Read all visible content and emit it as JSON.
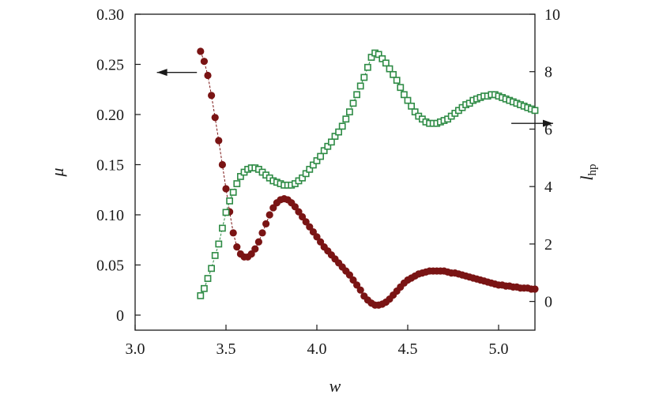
{
  "chart_data": {
    "type": "scatter",
    "xlabel": "w",
    "ylabel_left": "μ",
    "ylabel_right_main": "l",
    "ylabel_right_sub": "hp",
    "xlim": [
      3.0,
      5.2
    ],
    "ylim_left": [
      -0.015,
      0.3
    ],
    "ylim_right": [
      -1,
      10
    ],
    "x_ticks": [
      "3.0",
      "3.5",
      "4.0",
      "4.5",
      "5.0"
    ],
    "x_tick_values": [
      3.0,
      3.5,
      4.0,
      4.5,
      5.0
    ],
    "yleft_ticks": [
      "0",
      "0.05",
      "0.10",
      "0.15",
      "0.20",
      "0.25",
      "0.30"
    ],
    "yleft_tick_values": [
      0,
      0.05,
      0.1,
      0.15,
      0.2,
      0.25,
      0.3
    ],
    "yright_ticks": [
      "0",
      "2",
      "4",
      "6",
      "8",
      "10"
    ],
    "yright_tick_values": [
      0,
      2,
      4,
      6,
      8,
      10
    ],
    "grid": false,
    "series": [
      {
        "marker": "filled-circle",
        "axis": "left",
        "color": "#7a1414",
        "points": [
          [
            3.36,
            0.263
          ],
          [
            3.38,
            0.253
          ],
          [
            3.4,
            0.239
          ],
          [
            3.42,
            0.219
          ],
          [
            3.44,
            0.197
          ],
          [
            3.46,
            0.174
          ],
          [
            3.48,
            0.15
          ],
          [
            3.5,
            0.126
          ],
          [
            3.52,
            0.103
          ],
          [
            3.54,
            0.082
          ],
          [
            3.56,
            0.068
          ],
          [
            3.58,
            0.061
          ],
          [
            3.6,
            0.058
          ],
          [
            3.62,
            0.058
          ],
          [
            3.64,
            0.061
          ],
          [
            3.66,
            0.066
          ],
          [
            3.68,
            0.073
          ],
          [
            3.7,
            0.082
          ],
          [
            3.72,
            0.091
          ],
          [
            3.74,
            0.1
          ],
          [
            3.76,
            0.107
          ],
          [
            3.78,
            0.112
          ],
          [
            3.8,
            0.115
          ],
          [
            3.82,
            0.116
          ],
          [
            3.84,
            0.115
          ],
          [
            3.86,
            0.112
          ],
          [
            3.88,
            0.108
          ],
          [
            3.9,
            0.103
          ],
          [
            3.92,
            0.098
          ],
          [
            3.94,
            0.093
          ],
          [
            3.96,
            0.088
          ],
          [
            3.98,
            0.083
          ],
          [
            4.0,
            0.078
          ],
          [
            4.02,
            0.073
          ],
          [
            4.04,
            0.068
          ],
          [
            4.06,
            0.064
          ],
          [
            4.08,
            0.06
          ],
          [
            4.1,
            0.056
          ],
          [
            4.12,
            0.052
          ],
          [
            4.14,
            0.048
          ],
          [
            4.16,
            0.044
          ],
          [
            4.18,
            0.04
          ],
          [
            4.2,
            0.035
          ],
          [
            4.22,
            0.03
          ],
          [
            4.24,
            0.025
          ],
          [
            4.26,
            0.019
          ],
          [
            4.28,
            0.015
          ],
          [
            4.3,
            0.012
          ],
          [
            4.32,
            0.01
          ],
          [
            4.34,
            0.01
          ],
          [
            4.36,
            0.011
          ],
          [
            4.38,
            0.013
          ],
          [
            4.4,
            0.016
          ],
          [
            4.42,
            0.02
          ],
          [
            4.44,
            0.024
          ],
          [
            4.46,
            0.028
          ],
          [
            4.48,
            0.032
          ],
          [
            4.5,
            0.035
          ],
          [
            4.52,
            0.037
          ],
          [
            4.54,
            0.039
          ],
          [
            4.56,
            0.041
          ],
          [
            4.58,
            0.042
          ],
          [
            4.6,
            0.043
          ],
          [
            4.62,
            0.044
          ],
          [
            4.64,
            0.044
          ],
          [
            4.66,
            0.044
          ],
          [
            4.68,
            0.044
          ],
          [
            4.7,
            0.044
          ],
          [
            4.72,
            0.043
          ],
          [
            4.74,
            0.042
          ],
          [
            4.76,
            0.042
          ],
          [
            4.78,
            0.041
          ],
          [
            4.8,
            0.04
          ],
          [
            4.82,
            0.039
          ],
          [
            4.84,
            0.038
          ],
          [
            4.86,
            0.037
          ],
          [
            4.88,
            0.036
          ],
          [
            4.9,
            0.035
          ],
          [
            4.92,
            0.034
          ],
          [
            4.94,
            0.033
          ],
          [
            4.96,
            0.032
          ],
          [
            4.98,
            0.031
          ],
          [
            5.0,
            0.03
          ],
          [
            5.02,
            0.03
          ],
          [
            5.04,
            0.029
          ],
          [
            5.06,
            0.029
          ],
          [
            5.08,
            0.028
          ],
          [
            5.1,
            0.028
          ],
          [
            5.12,
            0.027
          ],
          [
            5.14,
            0.027
          ],
          [
            5.16,
            0.027
          ],
          [
            5.18,
            0.026
          ],
          [
            5.2,
            0.026
          ]
        ]
      },
      {
        "marker": "open-square",
        "axis": "right",
        "color": "#2e8b45",
        "points": [
          [
            3.36,
            0.2
          ],
          [
            3.38,
            0.45
          ],
          [
            3.4,
            0.8
          ],
          [
            3.42,
            1.15
          ],
          [
            3.44,
            1.6
          ],
          [
            3.46,
            2.0
          ],
          [
            3.48,
            2.55
          ],
          [
            3.5,
            3.1
          ],
          [
            3.52,
            3.5
          ],
          [
            3.54,
            3.8
          ],
          [
            3.56,
            4.1
          ],
          [
            3.58,
            4.35
          ],
          [
            3.6,
            4.5
          ],
          [
            3.62,
            4.6
          ],
          [
            3.64,
            4.65
          ],
          [
            3.66,
            4.65
          ],
          [
            3.68,
            4.6
          ],
          [
            3.7,
            4.5
          ],
          [
            3.72,
            4.4
          ],
          [
            3.74,
            4.3
          ],
          [
            3.76,
            4.2
          ],
          [
            3.78,
            4.15
          ],
          [
            3.8,
            4.1
          ],
          [
            3.82,
            4.05
          ],
          [
            3.84,
            4.05
          ],
          [
            3.86,
            4.05
          ],
          [
            3.88,
            4.1
          ],
          [
            3.9,
            4.2
          ],
          [
            3.92,
            4.3
          ],
          [
            3.94,
            4.45
          ],
          [
            3.96,
            4.6
          ],
          [
            3.98,
            4.75
          ],
          [
            4.0,
            4.9
          ],
          [
            4.02,
            5.05
          ],
          [
            4.04,
            5.25
          ],
          [
            4.06,
            5.4
          ],
          [
            4.08,
            5.55
          ],
          [
            4.1,
            5.75
          ],
          [
            4.12,
            5.9
          ],
          [
            4.14,
            6.1
          ],
          [
            4.16,
            6.35
          ],
          [
            4.18,
            6.6
          ],
          [
            4.2,
            6.9
          ],
          [
            4.22,
            7.2
          ],
          [
            4.24,
            7.5
          ],
          [
            4.26,
            7.8
          ],
          [
            4.28,
            8.15
          ],
          [
            4.3,
            8.5
          ],
          [
            4.32,
            8.65
          ],
          [
            4.34,
            8.6
          ],
          [
            4.36,
            8.45
          ],
          [
            4.38,
            8.3
          ],
          [
            4.4,
            8.1
          ],
          [
            4.42,
            7.9
          ],
          [
            4.44,
            7.7
          ],
          [
            4.46,
            7.45
          ],
          [
            4.48,
            7.2
          ],
          [
            4.5,
            7.0
          ],
          [
            4.52,
            6.8
          ],
          [
            4.54,
            6.6
          ],
          [
            4.56,
            6.45
          ],
          [
            4.58,
            6.35
          ],
          [
            4.6,
            6.25
          ],
          [
            4.62,
            6.2
          ],
          [
            4.64,
            6.2
          ],
          [
            4.66,
            6.2
          ],
          [
            4.68,
            6.25
          ],
          [
            4.7,
            6.3
          ],
          [
            4.72,
            6.35
          ],
          [
            4.74,
            6.45
          ],
          [
            4.76,
            6.55
          ],
          [
            4.78,
            6.65
          ],
          [
            4.8,
            6.75
          ],
          [
            4.82,
            6.85
          ],
          [
            4.84,
            6.9
          ],
          [
            4.86,
            7.0
          ],
          [
            4.88,
            7.05
          ],
          [
            4.9,
            7.1
          ],
          [
            4.92,
            7.15
          ],
          [
            4.94,
            7.15
          ],
          [
            4.96,
            7.2
          ],
          [
            4.98,
            7.2
          ],
          [
            5.0,
            7.15
          ],
          [
            5.02,
            7.1
          ],
          [
            5.04,
            7.05
          ],
          [
            5.06,
            7.0
          ],
          [
            5.08,
            6.95
          ],
          [
            5.1,
            6.9
          ],
          [
            5.12,
            6.85
          ],
          [
            5.14,
            6.8
          ],
          [
            5.16,
            6.75
          ],
          [
            5.18,
            6.7
          ],
          [
            5.2,
            6.65
          ]
        ]
      }
    ],
    "annotations": [
      {
        "type": "arrow",
        "direction": "left",
        "axis": "left",
        "x_from": 3.34,
        "x_to": 3.12,
        "y": 0.242
      },
      {
        "type": "arrow",
        "direction": "right",
        "axis": "right",
        "x_from": 5.07,
        "x_to": 5.3,
        "y": 6.2
      }
    ]
  }
}
